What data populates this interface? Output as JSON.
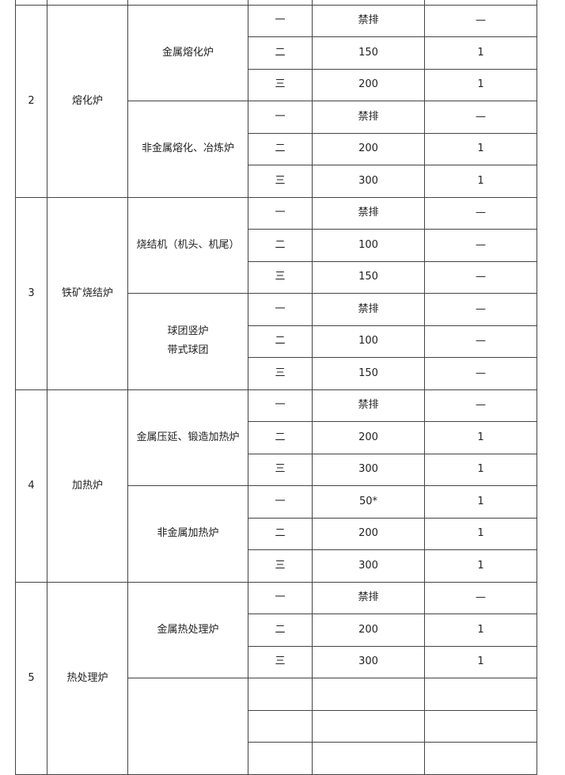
{
  "groups": [
    {
      "no": "2",
      "name": "熔化炉",
      "subs": [
        {
          "name": [
            "金属熔化炉"
          ],
          "rows": [
            [
              "一",
              "禁排",
              "—"
            ],
            [
              "二",
              "150",
              "1"
            ],
            [
              "三",
              "200",
              "1"
            ]
          ]
        },
        {
          "name": [
            "非金属熔化、冶炼炉"
          ],
          "rows": [
            [
              "一",
              "禁排",
              "—"
            ],
            [
              "二",
              "200",
              "1"
            ],
            [
              "三",
              "300",
              "1"
            ]
          ]
        }
      ]
    },
    {
      "no": "3",
      "name": "铁矿烧结炉",
      "subs": [
        {
          "name": [
            "烧结机（机头、机尾）"
          ],
          "rows": [
            [
              "一",
              "禁排",
              "—"
            ],
            [
              "二",
              "100",
              "—"
            ],
            [
              "三",
              "150",
              "—"
            ]
          ]
        },
        {
          "name": [
            "球团竖炉",
            "带式球团"
          ],
          "rows": [
            [
              "一",
              "禁排",
              "—"
            ],
            [
              "二",
              "100",
              "—"
            ],
            [
              "三",
              "150",
              "—"
            ]
          ]
        }
      ]
    },
    {
      "no": "4",
      "name": "加热炉",
      "subs": [
        {
          "name": [
            "金属压延、锻造加热炉"
          ],
          "rows": [
            [
              "一",
              "禁排",
              "—"
            ],
            [
              "二",
              "200",
              "1"
            ],
            [
              "三",
              "300",
              "1"
            ]
          ]
        },
        {
          "name": [
            "非金属加热炉"
          ],
          "rows": [
            [
              "一",
              "50*",
              "1"
            ],
            [
              "二",
              "200",
              "1"
            ],
            [
              "三",
              "300",
              "1"
            ]
          ]
        }
      ]
    },
    {
      "no": "5",
      "name": "热处理炉",
      "subs": [
        {
          "name": [
            "金属热处理炉"
          ],
          "rows": [
            [
              "一",
              "禁排",
              "—"
            ],
            [
              "二",
              "200",
              "1"
            ],
            [
              "三",
              "300",
              "1"
            ]
          ]
        },
        {
          "name": [
            ""
          ],
          "rows": [
            [
              "",
              "",
              ""
            ],
            [
              "",
              "",
              ""
            ],
            [
              "",
              "",
              ""
            ]
          ]
        }
      ]
    }
  ]
}
